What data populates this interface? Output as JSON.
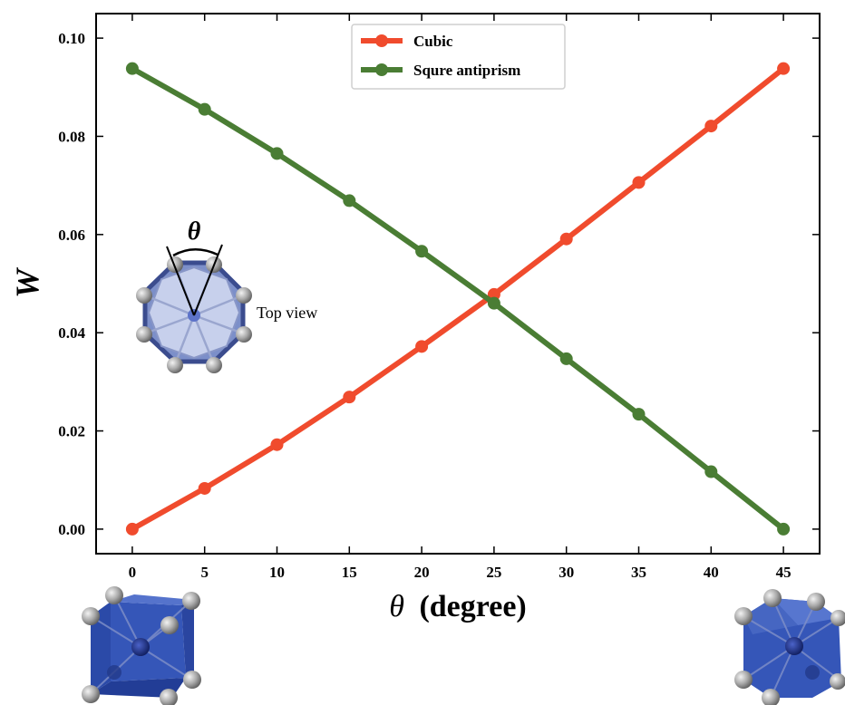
{
  "chart_data": {
    "type": "line",
    "xlabel_symbol": "θ",
    "xlabel_text": "(degree)",
    "ylabel": "W",
    "xlim": [
      -2.5,
      47.5
    ],
    "ylim": [
      -0.005,
      0.105
    ],
    "xticks": [
      0,
      5,
      10,
      15,
      20,
      25,
      30,
      35,
      40,
      45
    ],
    "yticks": [
      0.0,
      0.02,
      0.04,
      0.06,
      0.08,
      0.1
    ],
    "ytick_labels": [
      "0.00",
      "0.02",
      "0.04",
      "0.06",
      "0.08",
      "0.10"
    ],
    "x": [
      0,
      5,
      10,
      15,
      20,
      25,
      30,
      35,
      40,
      45
    ],
    "series": [
      {
        "name": "Cubic",
        "color": "#f04b2d",
        "values": [
          0.0,
          0.0083,
          0.0172,
          0.0269,
          0.0372,
          0.0478,
          0.0591,
          0.0706,
          0.0821,
          0.0938
        ]
      },
      {
        "name": "Squre antiprism",
        "color": "#4a7d34",
        "values": [
          0.0938,
          0.0855,
          0.0765,
          0.0669,
          0.0566,
          0.046,
          0.0347,
          0.0234,
          0.0117,
          0.0
        ]
      }
    ],
    "legend_position": "top-center",
    "grid": false
  },
  "inset": {
    "angle_label": "θ",
    "caption": "Top view"
  },
  "colors": {
    "polyhedron_face": "#3f5fc4",
    "polyhedron_dark": "#22338a",
    "atom": "#9a9a9a"
  }
}
